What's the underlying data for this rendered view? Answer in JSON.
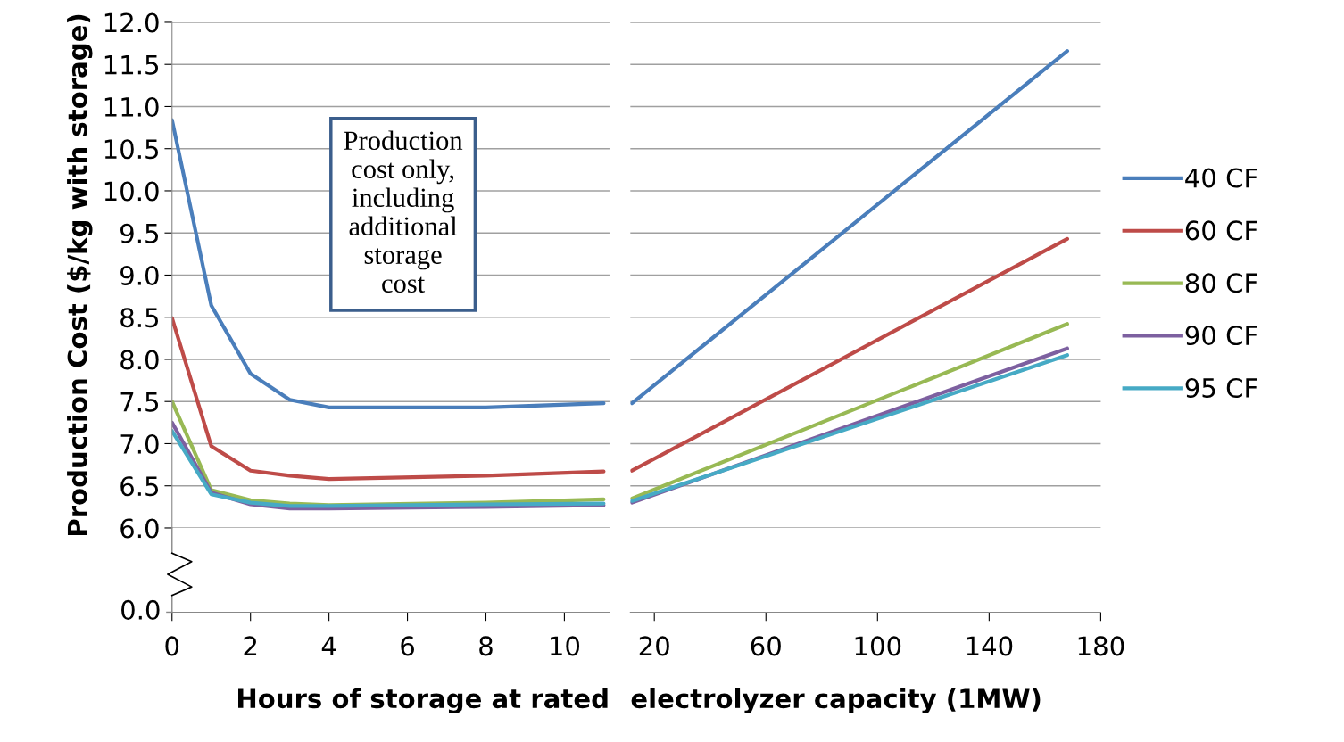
{
  "chart_data": [
    {
      "type": "line",
      "xlabel": "Hours of storage at rated",
      "ylabel": "Production Cost ($/kg with storage)",
      "xlim": [
        0,
        11.15
      ],
      "xticks": [
        0,
        2,
        4,
        6,
        8,
        10
      ],
      "ylim": [
        6.0,
        12.0
      ],
      "yticks": [
        {
          "value": 6.0,
          "label": "6.0"
        },
        {
          "value": 6.5,
          "label": "6.5"
        },
        {
          "value": 7.0,
          "label": "7.0"
        },
        {
          "value": 7.5,
          "label": "7.5"
        },
        {
          "value": 8.0,
          "label": "8.0"
        },
        {
          "value": 8.5,
          "label": "8.5"
        },
        {
          "value": 9.0,
          "label": "9.0"
        },
        {
          "value": 9.5,
          "label": "9.5"
        },
        {
          "value": 10.0,
          "label": "10.0"
        },
        {
          "value": 10.5,
          "label": "10.5"
        },
        {
          "value": 11.0,
          "label": "11.0"
        },
        {
          "value": 11.5,
          "label": "11.5"
        },
        {
          "value": 12.0,
          "label": "12.0"
        }
      ],
      "grid": "y",
      "legend": false,
      "x": [
        0,
        1,
        2,
        3,
        4,
        8,
        11
      ],
      "annotations": [
        "0.0",
        "Production\ncost only,\nincluding\nadditional\nstorage\ncost"
      ],
      "series": [
        {
          "color": "#4a7ebb",
          "values": [
            10.84,
            8.64,
            7.83,
            7.52,
            7.43,
            7.43,
            7.48
          ]
        },
        {
          "color": "#be4b48",
          "values": [
            8.49,
            6.97,
            6.68,
            6.62,
            6.58,
            6.62,
            6.67
          ]
        },
        {
          "color": "#98b954",
          "values": [
            7.5,
            6.45,
            6.33,
            6.29,
            6.27,
            6.3,
            6.34
          ]
        },
        {
          "color": "#7d60a0",
          "values": [
            7.25,
            6.42,
            6.28,
            6.23,
            6.23,
            6.25,
            6.27
          ]
        },
        {
          "color": "#46aac5",
          "values": [
            7.15,
            6.4,
            6.3,
            6.26,
            6.26,
            6.28,
            6.29
          ]
        }
      ]
    },
    {
      "type": "line",
      "xlabel": "electrolyzer capacity (1MW)",
      "xlim": [
        11.4,
        180
      ],
      "xticks": [
        20,
        60,
        100,
        140,
        180
      ],
      "ylim": [
        6.0,
        12.0
      ],
      "yticks": [
        6,
        6.5,
        7,
        7.5,
        8,
        8.5,
        9,
        9.5,
        10,
        10.5,
        11,
        11.5,
        12
      ],
      "grid": "y",
      "legend": "right",
      "tick_labels": "x",
      "x": [
        12,
        168
      ],
      "series": [
        {
          "name": "40 CF",
          "color": "#4a7ebb",
          "values": [
            7.48,
            11.66
          ]
        },
        {
          "name": "60 CF",
          "color": "#be4b48",
          "values": [
            6.68,
            9.43
          ]
        },
        {
          "name": "80 CF",
          "color": "#98b954",
          "values": [
            6.35,
            8.42
          ]
        },
        {
          "name": "90 CF",
          "color": "#7d60a0",
          "values": [
            6.3,
            8.13
          ]
        },
        {
          "name": "95 CF",
          "color": "#46aac5",
          "values": [
            6.32,
            8.05
          ]
        }
      ]
    }
  ]
}
